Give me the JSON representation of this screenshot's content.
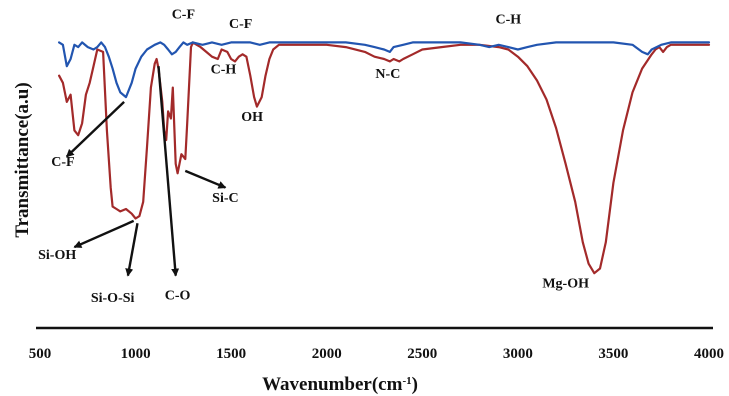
{
  "chart_data": {
    "type": "line",
    "xlabel": "Wavenumber(cm",
    "xlabel_sup": "-1",
    "xlabel_close": ")",
    "ylabel": "Transmittance(a.u)",
    "xlim": [
      500,
      4000
    ],
    "ylim": [
      0,
      1
    ],
    "x_ticks": [
      500,
      1000,
      1500,
      2000,
      2500,
      3000,
      3500,
      4000
    ],
    "y_ticks": [],
    "grid": false,
    "series": [
      {
        "color": "#a32a2a",
        "x": [
          600,
          620,
          640,
          660,
          680,
          700,
          720,
          740,
          760,
          780,
          800,
          830,
          850,
          870,
          880,
          900,
          920,
          950,
          980,
          1000,
          1020,
          1040,
          1060,
          1080,
          1100,
          1110,
          1120,
          1140,
          1150,
          1160,
          1170,
          1185,
          1195,
          1210,
          1220,
          1240,
          1260,
          1270,
          1290,
          1300,
          1320,
          1340,
          1370,
          1400,
          1430,
          1450,
          1480,
          1500,
          1520,
          1540,
          1560,
          1580,
          1600,
          1620,
          1635,
          1660,
          1680,
          1700,
          1720,
          1750,
          1800,
          1900,
          2000,
          2100,
          2200,
          2250,
          2300,
          2330,
          2350,
          2380,
          2400,
          2450,
          2500,
          2600,
          2700,
          2800,
          2900,
          2950,
          3000,
          3050,
          3100,
          3150,
          3200,
          3250,
          3300,
          3340,
          3370,
          3400,
          3430,
          3460,
          3500,
          3550,
          3600,
          3650,
          3700,
          3720,
          3740,
          3760,
          3780,
          3800,
          3850,
          3900,
          4000
        ],
        "y": [
          0.85,
          0.82,
          0.74,
          0.77,
          0.62,
          0.6,
          0.65,
          0.77,
          0.82,
          0.89,
          0.96,
          0.95,
          0.62,
          0.38,
          0.3,
          0.29,
          0.28,
          0.29,
          0.27,
          0.25,
          0.26,
          0.32,
          0.55,
          0.8,
          0.9,
          0.92,
          0.88,
          0.74,
          0.62,
          0.58,
          0.7,
          0.67,
          0.8,
          0.48,
          0.44,
          0.52,
          0.5,
          0.65,
          0.97,
          0.99,
          0.98,
          0.97,
          0.95,
          0.93,
          0.92,
          0.96,
          0.95,
          0.92,
          0.91,
          0.93,
          0.94,
          0.93,
          0.85,
          0.76,
          0.72,
          0.76,
          0.85,
          0.92,
          0.96,
          0.98,
          0.98,
          0.98,
          0.98,
          0.97,
          0.95,
          0.93,
          0.92,
          0.91,
          0.92,
          0.91,
          0.92,
          0.94,
          0.96,
          0.97,
          0.98,
          0.98,
          0.97,
          0.96,
          0.93,
          0.89,
          0.83,
          0.75,
          0.63,
          0.48,
          0.32,
          0.15,
          0.06,
          0.02,
          0.04,
          0.15,
          0.4,
          0.62,
          0.78,
          0.88,
          0.94,
          0.96,
          0.97,
          0.95,
          0.97,
          0.98,
          0.98,
          0.98,
          0.98
        ]
      },
      {
        "color": "#2255b0",
        "x": [
          600,
          620,
          640,
          660,
          680,
          700,
          720,
          750,
          780,
          800,
          820,
          840,
          860,
          880,
          900,
          920,
          950,
          980,
          1000,
          1030,
          1060,
          1100,
          1130,
          1150,
          1170,
          1190,
          1210,
          1230,
          1250,
          1270,
          1300,
          1350,
          1400,
          1450,
          1500,
          1550,
          1600,
          1650,
          1700,
          1750,
          1800,
          1900,
          2000,
          2100,
          2200,
          2250,
          2300,
          2330,
          2350,
          2400,
          2450,
          2500,
          2600,
          2700,
          2800,
          2850,
          2900,
          2950,
          3000,
          3050,
          3100,
          3200,
          3300,
          3400,
          3500,
          3600,
          3650,
          3680,
          3700,
          3750,
          3800,
          3850,
          3900,
          4000
        ],
        "y": [
          0.99,
          0.98,
          0.89,
          0.92,
          0.98,
          0.97,
          0.99,
          0.97,
          0.96,
          0.97,
          0.99,
          0.97,
          0.93,
          0.88,
          0.82,
          0.78,
          0.76,
          0.82,
          0.88,
          0.93,
          0.96,
          0.98,
          0.99,
          0.98,
          0.96,
          0.94,
          0.95,
          0.97,
          0.99,
          0.98,
          0.99,
          0.98,
          0.99,
          0.98,
          0.99,
          0.99,
          0.99,
          0.98,
          0.99,
          0.99,
          0.99,
          0.99,
          0.99,
          0.99,
          0.98,
          0.97,
          0.96,
          0.95,
          0.97,
          0.98,
          0.99,
          0.99,
          0.99,
          0.99,
          0.98,
          0.97,
          0.98,
          0.97,
          0.96,
          0.97,
          0.98,
          0.99,
          0.99,
          0.99,
          0.99,
          0.98,
          0.95,
          0.94,
          0.96,
          0.98,
          0.99,
          0.99,
          0.99,
          0.99
        ]
      }
    ],
    "annotations": [
      {
        "text": "C-F",
        "x": 1250,
        "y": 1.09
      },
      {
        "text": "C-F",
        "x": 1550,
        "y": 1.05
      },
      {
        "text": "C-H",
        "x": 2950,
        "y": 1.07
      },
      {
        "text": "C-H",
        "x": 1460,
        "y": 0.86
      },
      {
        "text": "OH",
        "x": 1610,
        "y": 0.66
      },
      {
        "text": "N-C",
        "x": 2320,
        "y": 0.84
      },
      {
        "text": "C-F",
        "x": 620,
        "y": 0.47
      },
      {
        "text": "Si-C",
        "x": 1470,
        "y": 0.32
      },
      {
        "text": "Si-OH",
        "x": 590,
        "y": 0.08
      },
      {
        "text": "Si-O-Si",
        "x": 880,
        "y": -0.1
      },
      {
        "text": "C-O",
        "x": 1220,
        "y": -0.09
      },
      {
        "text": "Mg-OH",
        "x": 3250,
        "y": -0.04
      }
    ],
    "arrows": [
      {
        "from": [
          940,
          0.74
        ],
        "to": [
          640,
          0.51
        ]
      },
      {
        "from": [
          1260,
          0.45
        ],
        "to": [
          1470,
          0.38
        ]
      },
      {
        "from": [
          990,
          0.24
        ],
        "to": [
          680,
          0.13
        ]
      },
      {
        "from": [
          1010,
          0.23
        ],
        "to": [
          960,
          0.01
        ]
      },
      {
        "from": [
          1120,
          0.89
        ],
        "to": [
          1210,
          0.01
        ]
      }
    ]
  }
}
